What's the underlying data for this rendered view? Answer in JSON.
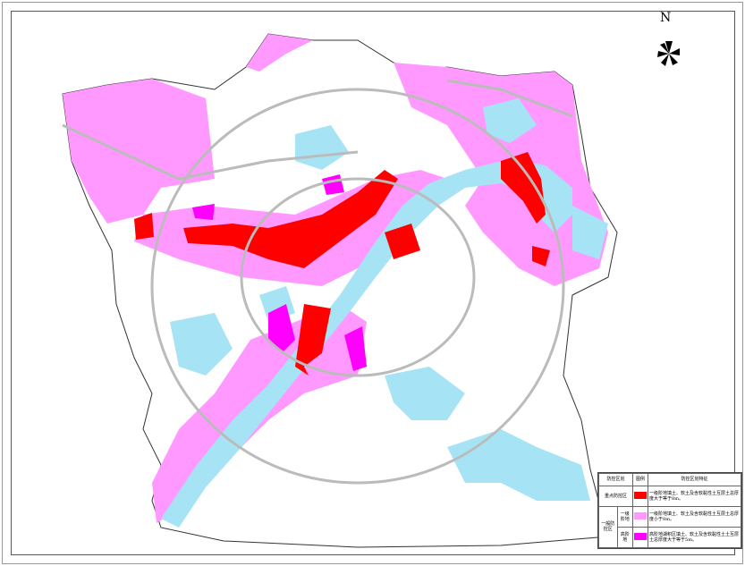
{
  "map": {
    "north_label": "N",
    "colors": {
      "key_zone": "#ff0000",
      "terrace_zone": "#ff99ff",
      "high_terrace_zone": "#ff00ff",
      "water": "#a6e4f5",
      "roads": "#c8c8c8"
    },
    "icons": [
      "compass-rose-icon"
    ]
  },
  "legend": {
    "headers": [
      "防控区划",
      "图例",
      "防控区划特征"
    ],
    "rows": [
      {
        "group": "重点防控区",
        "sub": "",
        "color": "#ff0000",
        "desc": "一级阶地填土、软土及含软黏性土互层土总厚度大于等于8m。"
      },
      {
        "group": "一般防控区",
        "sub": "一级阶地",
        "color": "#ff99ff",
        "desc": "一级阶地填土、软土及含软黏性土互层土总厚度小于8m。"
      },
      {
        "group": "一般防控区",
        "sub": "高阶地",
        "color": "#ff00ff",
        "desc": "高阶地湖积区填土、软土及含软黏性土土互层土总厚度大于等于5m。"
      }
    ]
  }
}
